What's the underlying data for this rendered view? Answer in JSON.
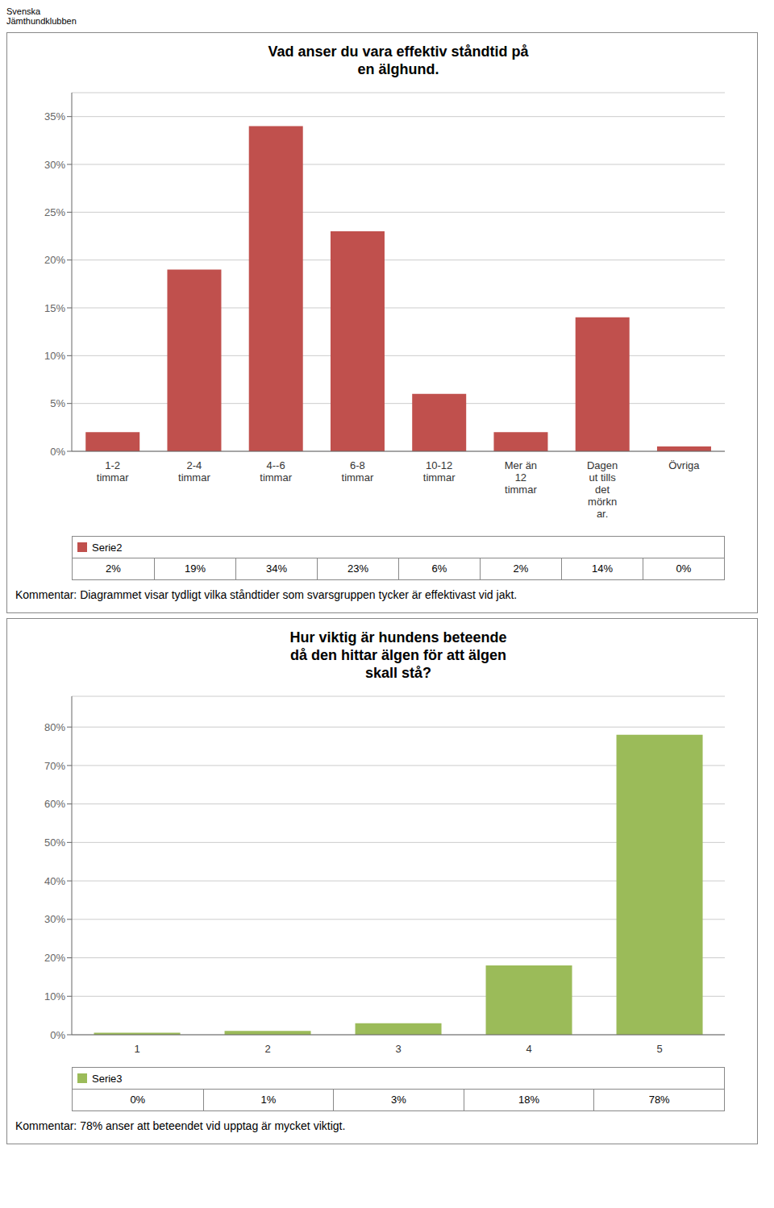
{
  "chart_data": [
    {
      "type": "bar",
      "title": "Vad anser du vara effektiv ståndtid på\nen älghund.",
      "categories": [
        "1-2\ntimmar",
        "2-4\ntimmar",
        "4--6\ntimmar",
        "6-8\ntimmar",
        "10-12\ntimmar",
        "Mer än\n12\ntimmar",
        "Dagen\nut tills\ndet\nmörkn\nar.",
        "Övriga"
      ],
      "series": [
        {
          "name": "Serie2",
          "color": "#C0504D",
          "values": [
            0.02,
            0.19,
            0.34,
            0.23,
            0.06,
            0.02,
            0.14,
            0.005
          ],
          "value_labels": [
            "2%",
            "19%",
            "34%",
            "23%",
            "6%",
            "2%",
            "14%",
            "0%"
          ]
        }
      ],
      "ylim": [
        0,
        0.375
      ],
      "yticks": [
        {
          "value": 0,
          "label": "0%"
        },
        {
          "value": 0.05,
          "label": "5%"
        },
        {
          "value": 0.1,
          "label": "10%"
        },
        {
          "value": 0.15,
          "label": "15%"
        },
        {
          "value": 0.2,
          "label": "20%"
        },
        {
          "value": 0.25,
          "label": "25%"
        },
        {
          "value": 0.3,
          "label": "30%"
        },
        {
          "value": 0.35,
          "label": "35%"
        }
      ],
      "grid": true,
      "annotations": [
        "Svenska\nJämthundklubben",
        "Kommentar: Diagrammet visar tydligt vilka ståndtider som svarsgruppen tycker är effektivast vid jakt."
      ]
    },
    {
      "type": "bar",
      "title": "Hur viktig är hundens beteende\ndå den hittar älgen för att älgen\nskall stå?",
      "categories": [
        "1",
        "2",
        "3",
        "4",
        "5"
      ],
      "series": [
        {
          "name": "Serie3",
          "color": "#9BBB59",
          "values": [
            0.005,
            0.01,
            0.03,
            0.18,
            0.78
          ],
          "value_labels": [
            "0%",
            "1%",
            "3%",
            "18%",
            "78%"
          ]
        }
      ],
      "ylim": [
        0,
        0.88
      ],
      "yticks": [
        {
          "value": 0,
          "label": "0%"
        },
        {
          "value": 0.1,
          "label": "10%"
        },
        {
          "value": 0.2,
          "label": "20%"
        },
        {
          "value": 0.3,
          "label": "30%"
        },
        {
          "value": 0.4,
          "label": "40%"
        },
        {
          "value": 0.5,
          "label": "50%"
        },
        {
          "value": 0.6,
          "label": "60%"
        },
        {
          "value": 0.7,
          "label": "70%"
        },
        {
          "value": 0.8,
          "label": "80%"
        }
      ],
      "grid": true,
      "annotations": [
        "Kommentar: 78% anser att beteendet vid upptag är mycket viktigt."
      ]
    }
  ]
}
